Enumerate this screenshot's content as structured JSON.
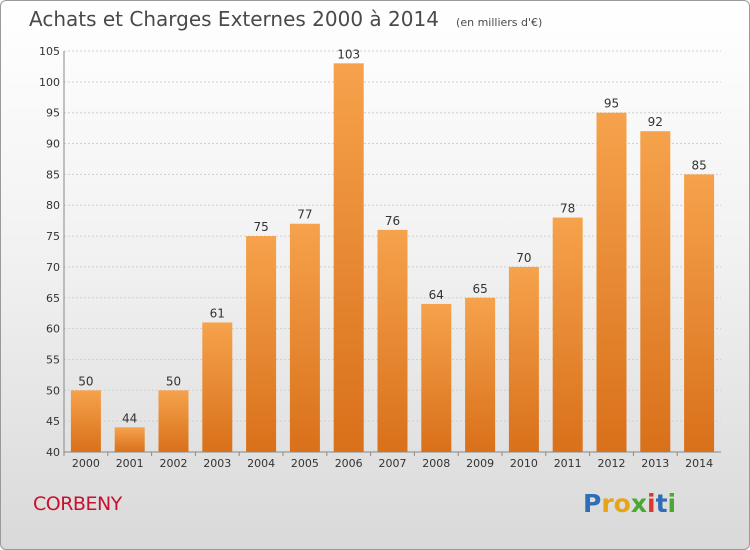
{
  "chart_data": {
    "type": "bar",
    "title": "Achats et Charges Externes 2000 à 2014",
    "unit_note": "(en milliers d'€)",
    "categories": [
      "2000",
      "2001",
      "2002",
      "2003",
      "2004",
      "2005",
      "2006",
      "2007",
      "2008",
      "2009",
      "2010",
      "2011",
      "2012",
      "2013",
      "2014"
    ],
    "values": [
      50,
      44,
      50,
      61,
      75,
      77,
      103,
      76,
      64,
      65,
      70,
      78,
      95,
      92,
      85
    ],
    "data_labels": [
      "50",
      "44",
      "50",
      "61",
      "75",
      "77",
      "103",
      "76",
      "64",
      "65",
      "70",
      "78",
      "95",
      "92",
      "85"
    ],
    "ylim": [
      40,
      105
    ],
    "y_ticks": [
      40,
      45,
      50,
      55,
      60,
      65,
      70,
      75,
      80,
      85,
      90,
      95,
      100,
      105
    ],
    "grid": true,
    "bar_color": "#f0933a",
    "bar_color_dark": "#e07818"
  },
  "footer": {
    "place": "CORBENY",
    "logo": [
      "P",
      "r",
      "o",
      "x",
      "i",
      "t",
      "i"
    ],
    "logo_colors": [
      "#2f6db5",
      "#e8a317",
      "#e8a317",
      "#4aa832",
      "#d63b2f",
      "#2f6db5",
      "#4aa832"
    ]
  }
}
